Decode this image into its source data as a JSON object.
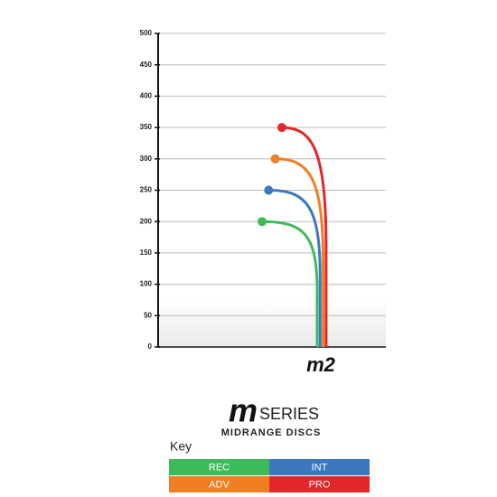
{
  "chart_data": {
    "type": "flight",
    "model": "m2",
    "ylim": [
      0,
      500
    ],
    "yticks": [
      0,
      50,
      100,
      150,
      200,
      250,
      300,
      350,
      400,
      450,
      500
    ],
    "grid": true,
    "series": [
      {
        "name": "REC",
        "color": "#3dbb5a",
        "value": 200
      },
      {
        "name": "INT",
        "color": "#3b78c0",
        "value": 250
      },
      {
        "name": "ADV",
        "color": "#f07f23",
        "value": 300
      },
      {
        "name": "PRO",
        "color": "#e3262b",
        "value": 350
      }
    ],
    "legend_title": "Key"
  },
  "brand": {
    "mark": "m",
    "text": "SERIES",
    "subtitle": "MIDRANGE DISCS"
  }
}
